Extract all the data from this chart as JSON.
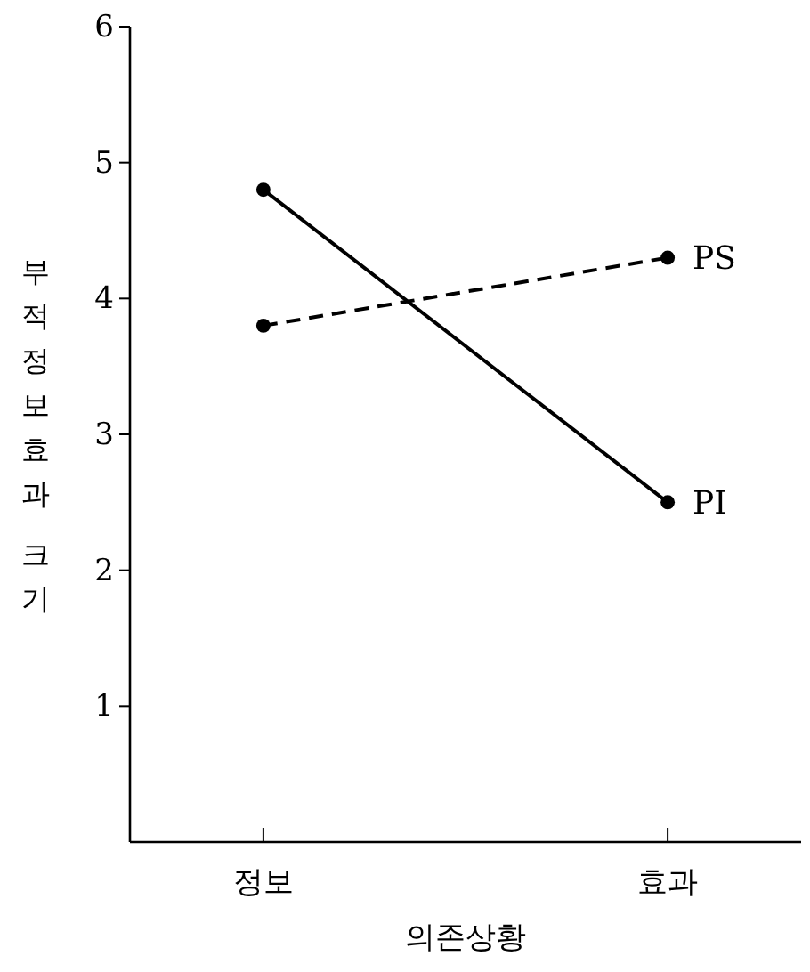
{
  "chart_data": {
    "type": "line",
    "ylabel": "부적정보효과 크기",
    "xlabel": "의존상황",
    "categories": [
      "정보",
      "효과"
    ],
    "ylim": [
      0,
      6
    ],
    "yticks": [
      1,
      2,
      3,
      4,
      5,
      6
    ],
    "marker": "circle",
    "grid": false,
    "legend": false,
    "series": [
      {
        "name": "PI",
        "color": "#000000",
        "values": [
          4.8,
          2.5
        ],
        "line_style": "solid"
      },
      {
        "name": "PS",
        "color": "#000000",
        "values": [
          3.8,
          4.3
        ],
        "line_style": "dashed"
      }
    ]
  }
}
